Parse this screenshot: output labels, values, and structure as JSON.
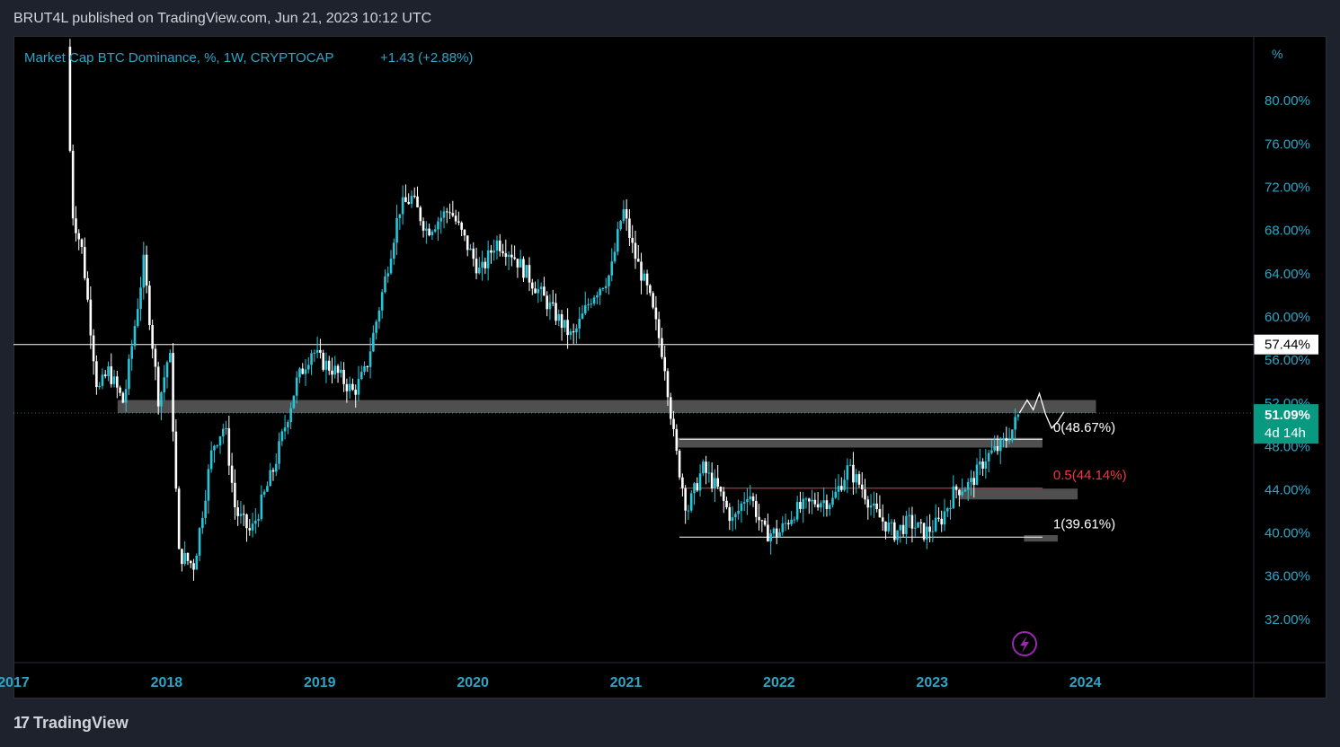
{
  "header": {
    "published_text": "BRUT4L published on TradingView.com, Jun 21, 2023 10:12 UTC"
  },
  "footer": {
    "brand": "TradingView",
    "logo_mark": "17"
  },
  "legend": {
    "symbol_text": "Market Cap BTC Dominance, %, 1W, CRYPTOCAP",
    "change_text": "+1.43 (+2.88%)"
  },
  "colors": {
    "background": "#000000",
    "frame": "#1e222d",
    "axis_text": "#2ba6c7",
    "up_candle": "#26c6da",
    "down_candle": "#ffffff",
    "fib_mid": "#f23645",
    "zone": "#5d5d5d",
    "price_tag": "#089981"
  },
  "chart_data": {
    "type": "candlestick",
    "title": "Market Cap BTC Dominance, %, 1W, CRYPTOCAP",
    "y_unit": "%",
    "ylim": [
      28,
      86
    ],
    "y_ticks": [
      "80.00%",
      "76.00%",
      "72.00%",
      "68.00%",
      "64.00%",
      "60.00%",
      "56.00%",
      "52.00%",
      "48.00%",
      "44.00%",
      "40.00%",
      "36.00%",
      "32.00%"
    ],
    "x_ticks": [
      "2017",
      "2018",
      "2019",
      "2020",
      "2021",
      "2022",
      "2023",
      "2024"
    ],
    "x_range": [
      2017.0,
      2025.1
    ],
    "series_path": [
      [
        2017.35,
        85
      ],
      [
        2017.38,
        70
      ],
      [
        2017.45,
        66
      ],
      [
        2017.55,
        53
      ],
      [
        2017.62,
        55
      ],
      [
        2017.72,
        52
      ],
      [
        2017.85,
        65
      ],
      [
        2017.95,
        52
      ],
      [
        2018.02,
        57
      ],
      [
        2018.08,
        38
      ],
      [
        2018.18,
        37
      ],
      [
        2018.3,
        48
      ],
      [
        2018.38,
        50
      ],
      [
        2018.45,
        42
      ],
      [
        2018.55,
        40
      ],
      [
        2018.7,
        46
      ],
      [
        2018.85,
        54
      ],
      [
        2018.95,
        57
      ],
      [
        2019.0,
        56
      ],
      [
        2019.1,
        55
      ],
      [
        2019.22,
        53
      ],
      [
        2019.3,
        55
      ],
      [
        2019.42,
        63
      ],
      [
        2019.52,
        70
      ],
      [
        2019.6,
        71
      ],
      [
        2019.7,
        68
      ],
      [
        2019.85,
        70
      ],
      [
        2019.95,
        67
      ],
      [
        2020.05,
        64
      ],
      [
        2020.15,
        67
      ],
      [
        2020.25,
        66
      ],
      [
        2020.35,
        64
      ],
      [
        2020.5,
        61
      ],
      [
        2020.65,
        58
      ],
      [
        2020.78,
        62
      ],
      [
        2020.9,
        64
      ],
      [
        2020.98,
        70
      ],
      [
        2021.05,
        66
      ],
      [
        2021.15,
        62
      ],
      [
        2021.25,
        56
      ],
      [
        2021.32,
        48
      ],
      [
        2021.4,
        42
      ],
      [
        2021.5,
        46
      ],
      [
        2021.6,
        44
      ],
      [
        2021.7,
        41
      ],
      [
        2021.8,
        44
      ],
      [
        2021.9,
        40
      ],
      [
        2022.0,
        40
      ],
      [
        2022.1,
        42
      ],
      [
        2022.25,
        43
      ],
      [
        2022.35,
        43
      ],
      [
        2022.45,
        46
      ],
      [
        2022.55,
        44
      ],
      [
        2022.62,
        42
      ],
      [
        2022.75,
        40
      ],
      [
        2022.85,
        41
      ],
      [
        2022.95,
        40
      ],
      [
        2023.05,
        41
      ],
      [
        2023.15,
        44
      ],
      [
        2023.25,
        44.5
      ],
      [
        2023.35,
        47
      ],
      [
        2023.45,
        48
      ],
      [
        2023.52,
        49.5
      ],
      [
        2023.57,
        51.09
      ]
    ],
    "projection_path": [
      [
        2023.57,
        51.09
      ],
      [
        2023.62,
        52.3
      ],
      [
        2023.66,
        51.4
      ],
      [
        2023.7,
        52.9
      ],
      [
        2023.74,
        51.0
      ],
      [
        2023.78,
        49.7
      ],
      [
        2023.82,
        50.3
      ],
      [
        2023.86,
        51.2
      ]
    ],
    "levels": [
      {
        "kind": "horizontal_line",
        "value": 57.44,
        "label": "57.44%"
      },
      {
        "kind": "zone",
        "from": 51.1,
        "to": 52.3,
        "x_start": 2017.68,
        "x_end": 2024.07
      },
      {
        "kind": "zone",
        "from": 47.9,
        "to": 48.8,
        "x_start": 2021.33,
        "x_end": 2023.72
      },
      {
        "kind": "zone",
        "from": 43.1,
        "to": 44.1,
        "x_start": 2023.18,
        "x_end": 2023.95
      },
      {
        "kind": "zone",
        "from": 39.2,
        "to": 39.8,
        "x_start": 2023.6,
        "x_end": 2023.82
      }
    ],
    "fib_levels": [
      {
        "ratio": "0",
        "value": 48.67,
        "label": "0(48.67%)",
        "color": "#ffffff"
      },
      {
        "ratio": "0.5",
        "value": 44.14,
        "label": "0.5(44.14%)",
        "color": "#f23645"
      },
      {
        "ratio": "1",
        "value": 39.61,
        "label": "1(39.61%)",
        "color": "#ffffff"
      }
    ],
    "fib_x_range": [
      2021.35,
      2023.72
    ],
    "current_price": {
      "value": 51.09,
      "label": "51.09%",
      "countdown": "4d 14h"
    }
  }
}
